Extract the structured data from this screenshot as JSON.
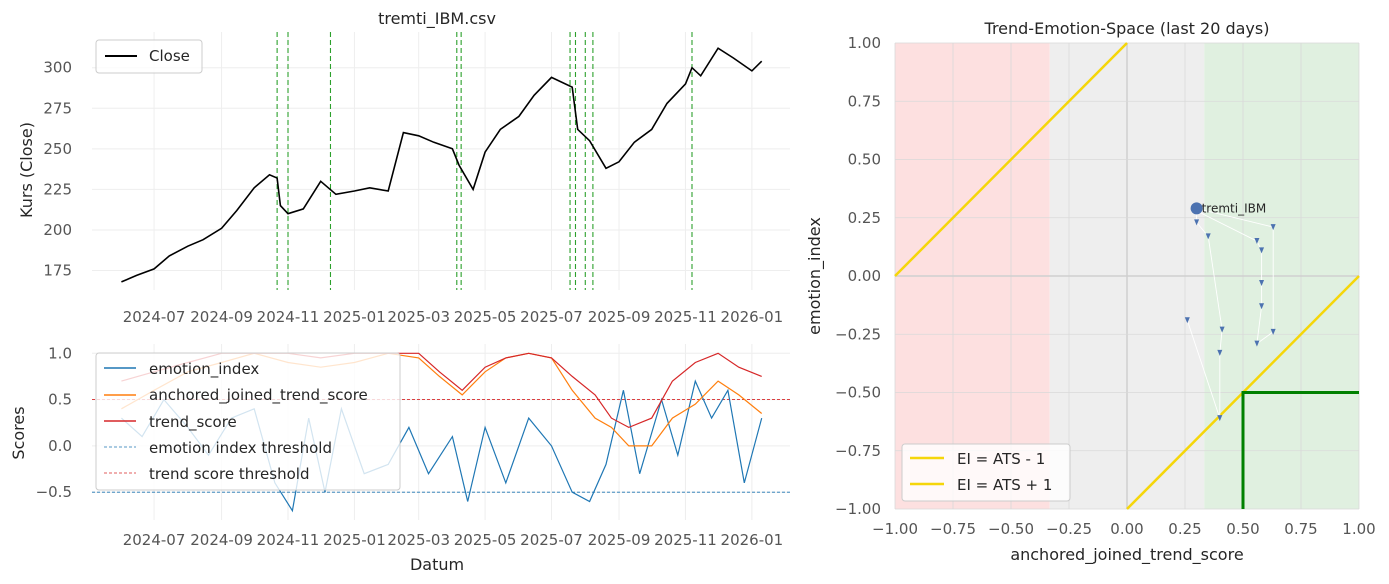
{
  "figure": {
    "price_panel": {
      "title": "tremti_IBM.csv",
      "ylabel": "Kurs (Close)",
      "xlabel": "",
      "legend": [
        "Close"
      ],
      "yticks": [
        175,
        200,
        225,
        250,
        275,
        300
      ],
      "xticks": [
        "2024-07",
        "2024-09",
        "2024-11",
        "2025-01",
        "2025-03",
        "2025-05",
        "2025-07",
        "2025-09",
        "2025-11",
        "2026-01"
      ]
    },
    "scores_panel": {
      "ylabel": "Scores",
      "xlabel": "Datum",
      "legend": [
        "emotion_index",
        "anchored_joined_trend_score",
        "trend_score",
        "emotion index threshold",
        "trend score threshold"
      ],
      "yticks": [
        "1.0",
        "0.5",
        "0.0",
        "−0.5"
      ],
      "xticks": [
        "2024-07",
        "2024-09",
        "2024-11",
        "2025-01",
        "2025-03",
        "2025-05",
        "2025-07",
        "2025-09",
        "2025-11",
        "2026-01"
      ]
    },
    "space_panel": {
      "title": "Trend-Emotion-Space (last 20 days)",
      "xlabel": "anchored_joined_trend_score",
      "ylabel": "emotion_index",
      "xticks": [
        "−1.00",
        "−0.75",
        "−0.50",
        "−0.25",
        "0.00",
        "0.25",
        "0.50",
        "0.75",
        "1.00"
      ],
      "yticks": [
        "1.00",
        "0.75",
        "0.50",
        "0.25",
        "0.00",
        "−0.25",
        "−0.50",
        "−0.75",
        "−1.00"
      ],
      "legend": [
        "EI = ATS - 1",
        "EI = ATS + 1"
      ],
      "point_label": "tremti_IBM"
    }
  },
  "colors": {
    "close": "#000000",
    "emotion_index": "#1f77b4",
    "anchored": "#ff7f0e",
    "trend_score": "#d62728",
    "signal_lines": "#2ca02c",
    "lines_ats": "#f5d60a",
    "box": "#008000",
    "red_zone": "#fde0e0",
    "grey_zone": "#eeeeee",
    "green_zone": "#e0f0e0",
    "point": "#4c72b0"
  },
  "chart_data": [
    {
      "type": "line",
      "title": "tremti_IBM.csv",
      "xlabel": "",
      "ylabel": "Kurs (Close)",
      "ylim": [
        163,
        322
      ],
      "xlim": [
        "2024-05-05",
        "2026-02-05"
      ],
      "grid": true,
      "legend_position": "top-left",
      "series": [
        {
          "name": "Close",
          "x": [
            "2024-06-01",
            "2024-06-15",
            "2024-07-01",
            "2024-07-15",
            "2024-08-01",
            "2024-08-15",
            "2024-09-01",
            "2024-09-15",
            "2024-10-01",
            "2024-10-15",
            "2024-10-22",
            "2024-10-25",
            "2024-11-01",
            "2024-11-15",
            "2024-12-01",
            "2024-12-15",
            "2025-01-01",
            "2025-01-15",
            "2025-02-01",
            "2025-02-15",
            "2025-03-01",
            "2025-03-15",
            "2025-04-01",
            "2025-04-07",
            "2025-04-20",
            "2025-05-01",
            "2025-05-15",
            "2025-06-01",
            "2025-06-15",
            "2025-07-01",
            "2025-07-20",
            "2025-07-25",
            "2025-08-05",
            "2025-08-20",
            "2025-09-01",
            "2025-09-15",
            "2025-10-01",
            "2025-10-15",
            "2025-11-01",
            "2025-11-07",
            "2025-11-15",
            "2025-12-01",
            "2025-12-15",
            "2026-01-01",
            "2026-01-10"
          ],
          "y": [
            168,
            172,
            176,
            184,
            190,
            194,
            201,
            212,
            226,
            234,
            232,
            215,
            210,
            213,
            230,
            222,
            224,
            226,
            224,
            260,
            258,
            254,
            250,
            240,
            225,
            248,
            262,
            270,
            283,
            294,
            288,
            262,
            255,
            238,
            242,
            254,
            262,
            278,
            290,
            300,
            295,
            312,
            306,
            298,
            304
          ]
        }
      ],
      "vertical_markers": [
        "2024-10-22",
        "2024-11-01",
        "2024-12-10",
        "2025-04-05",
        "2025-04-09",
        "2025-07-18",
        "2025-07-23",
        "2025-08-01",
        "2025-08-08",
        "2025-11-07"
      ]
    },
    {
      "type": "line",
      "xlabel": "Datum",
      "ylabel": "Scores",
      "ylim": [
        -0.8,
        1.1
      ],
      "xlim": [
        "2024-05-05",
        "2026-02-05"
      ],
      "grid": true,
      "legend_position": "top-left",
      "series": [
        {
          "name": "emotion_index",
          "x": [
            "2024-06-01",
            "2024-06-20",
            "2024-07-10",
            "2024-08-01",
            "2024-08-20",
            "2024-09-10",
            "2024-10-01",
            "2024-10-20",
            "2024-11-05",
            "2024-11-20",
            "2024-12-05",
            "2024-12-20",
            "2025-01-10",
            "2025-02-01",
            "2025-02-20",
            "2025-03-10",
            "2025-04-01",
            "2025-04-15",
            "2025-05-01",
            "2025-05-20",
            "2025-06-10",
            "2025-07-01",
            "2025-07-20",
            "2025-08-05",
            "2025-08-20",
            "2025-09-05",
            "2025-09-20",
            "2025-10-10",
            "2025-10-25",
            "2025-11-10",
            "2025-11-25",
            "2025-12-10",
            "2025-12-25",
            "2026-01-10"
          ],
          "y": [
            0.3,
            0.1,
            0.5,
            0.2,
            -0.1,
            0.3,
            0.4,
            -0.4,
            -0.7,
            0.3,
            -0.5,
            0.4,
            -0.3,
            -0.2,
            0.2,
            -0.3,
            0.1,
            -0.6,
            0.2,
            -0.4,
            0.3,
            0.0,
            -0.5,
            -0.6,
            -0.2,
            0.6,
            -0.3,
            0.5,
            -0.1,
            0.7,
            0.3,
            0.6,
            -0.4,
            0.3
          ]
        },
        {
          "name": "anchored_joined_trend_score",
          "x": [
            "2024-06-01",
            "2024-07-01",
            "2024-08-01",
            "2024-09-01",
            "2024-10-01",
            "2024-11-01",
            "2024-12-01",
            "2025-01-01",
            "2025-02-01",
            "2025-03-01",
            "2025-03-20",
            "2025-04-10",
            "2025-05-01",
            "2025-05-20",
            "2025-06-10",
            "2025-07-01",
            "2025-07-20",
            "2025-08-10",
            "2025-08-25",
            "2025-09-10",
            "2025-10-01",
            "2025-10-20",
            "2025-11-10",
            "2025-12-01",
            "2025-12-20",
            "2026-01-10"
          ],
          "y": [
            0.4,
            0.6,
            0.8,
            0.9,
            1.0,
            0.9,
            0.85,
            0.9,
            1.0,
            0.95,
            0.75,
            0.55,
            0.8,
            0.95,
            1.0,
            0.95,
            0.6,
            0.3,
            0.2,
            0.0,
            0.0,
            0.3,
            0.45,
            0.7,
            0.55,
            0.35
          ]
        },
        {
          "name": "trend_score",
          "x": [
            "2024-06-01",
            "2024-07-01",
            "2024-08-01",
            "2024-09-01",
            "2024-10-01",
            "2024-11-01",
            "2024-12-01",
            "2025-01-01",
            "2025-02-01",
            "2025-03-01",
            "2025-03-20",
            "2025-04-10",
            "2025-05-01",
            "2025-05-20",
            "2025-06-10",
            "2025-07-01",
            "2025-07-20",
            "2025-08-10",
            "2025-08-25",
            "2025-09-10",
            "2025-10-01",
            "2025-10-20",
            "2025-11-10",
            "2025-12-01",
            "2025-12-20",
            "2026-01-10"
          ],
          "y": [
            0.7,
            0.8,
            0.9,
            1.0,
            1.0,
            1.0,
            0.95,
            1.0,
            1.0,
            1.0,
            0.8,
            0.6,
            0.85,
            0.95,
            1.0,
            0.95,
            0.75,
            0.55,
            0.3,
            0.2,
            0.3,
            0.7,
            0.9,
            1.0,
            0.85,
            0.75
          ]
        },
        {
          "name": "emotion index threshold",
          "x": [
            "2024-05-05",
            "2026-02-05"
          ],
          "y": [
            -0.5,
            -0.5
          ]
        },
        {
          "name": "trend score threshold",
          "x": [
            "2024-05-05",
            "2026-02-05"
          ],
          "y": [
            0.5,
            0.5
          ]
        }
      ]
    },
    {
      "type": "scatter",
      "title": "Trend-Emotion-Space (last 20 days)",
      "xlabel": "anchored_joined_trend_score",
      "ylabel": "emotion_index",
      "xlim": [
        -1,
        1
      ],
      "ylim": [
        -1,
        1
      ],
      "grid": true,
      "legend_position": "bottom-left",
      "zones": [
        {
          "x_from": -1.0,
          "x_to": -0.333,
          "color": "red"
        },
        {
          "x_from": -0.333,
          "x_to": 0.333,
          "color": "grey"
        },
        {
          "x_from": 0.333,
          "x_to": 1.0,
          "color": "green"
        }
      ],
      "lines": [
        {
          "name": "EI = ATS - 1",
          "x": [
            0,
            1
          ],
          "y": [
            -1,
            0
          ]
        },
        {
          "name": "EI = ATS + 1",
          "x": [
            -1,
            0
          ],
          "y": [
            0,
            1
          ]
        }
      ],
      "box": {
        "x": [
          0.5,
          1.0
        ],
        "y": [
          -1.0,
          -0.5
        ]
      },
      "trail": {
        "x": [
          0.26,
          0.4,
          0.4,
          0.41,
          0.35,
          0.3,
          0.3,
          0.56,
          0.58,
          0.58,
          0.58,
          0.56,
          0.63,
          0.63,
          0.3
        ],
        "y": [
          -0.19,
          -0.61,
          -0.33,
          -0.23,
          0.17,
          0.23,
          0.28,
          0.15,
          0.11,
          -0.03,
          -0.13,
          -0.29,
          -0.24,
          0.21,
          0.29
        ]
      },
      "current_point": {
        "label": "tremti_IBM",
        "x": 0.3,
        "y": 0.29
      }
    }
  ]
}
